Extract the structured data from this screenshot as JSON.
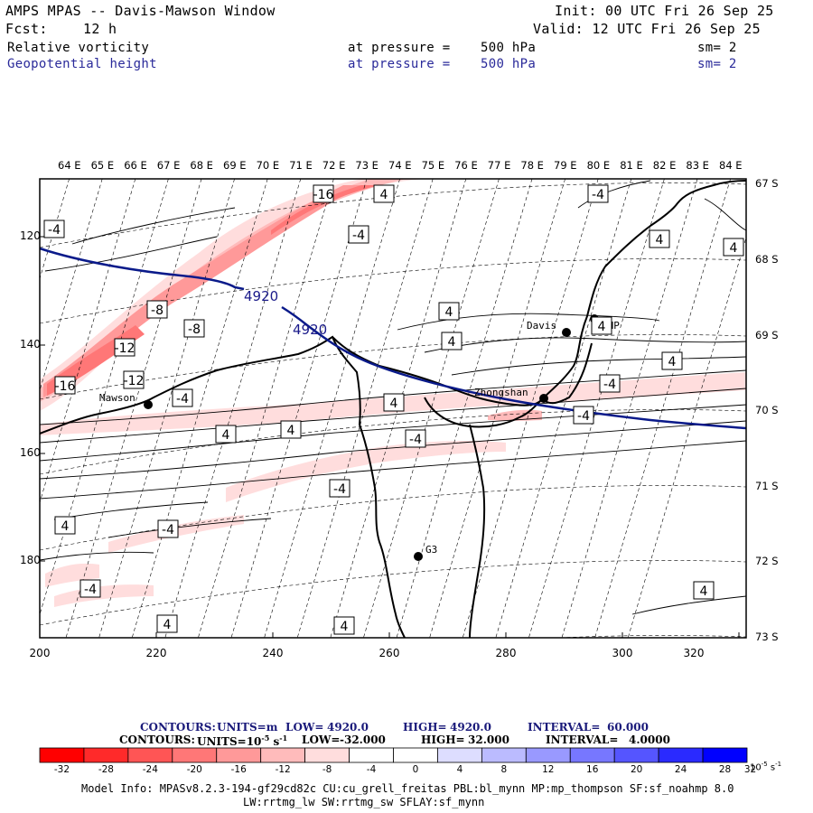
{
  "header": {
    "title": "AMPS MPAS -- Davis-Mawson Window",
    "init": "Init: 00 UTC Fri 26 Sep 25",
    "fcst_label": "Fcst:",
    "fcst_value": "12 h",
    "valid": "Valid: 12 UTC Fri 26 Sep 25",
    "fields": [
      {
        "name": "Relative vorticity",
        "level_label": "at pressure =",
        "level_value": "500 hPa",
        "smooth": "sm= 2",
        "color": "#000000"
      },
      {
        "name": "Geopotential height",
        "level_label": "at pressure =",
        "level_value": "500 hPa",
        "smooth": "sm= 2",
        "color": "#2a2a9a"
      }
    ]
  },
  "map": {
    "top_lon_labels": [
      "64 E",
      "65 E",
      "66 E",
      "67 E",
      "68 E",
      "69 E",
      "70 E",
      "71 E",
      "72 E",
      "73 E",
      "74 E",
      "75 E",
      "76 E",
      "77 E",
      "78 E",
      "79 E",
      "80 E",
      "81 E",
      "82 E",
      "83 E",
      "84 E"
    ],
    "x_ticks": [
      "200",
      "220",
      "240",
      "260",
      "280",
      "300",
      "320"
    ],
    "y_ticks": [
      "120",
      "140",
      "160",
      "180"
    ],
    "right_lat_labels": [
      "67 S",
      "68 S",
      "69 S",
      "70 S",
      "71 S",
      "72 S",
      "73 S"
    ],
    "stations": [
      {
        "name": "Mawson"
      },
      {
        "name": "Davis"
      },
      {
        "name": "Zhongshan"
      },
      {
        "name": "AHP"
      },
      {
        "name": "G3"
      }
    ],
    "height_labels": [
      "4920",
      "4920"
    ],
    "vort_labels": [
      "-4",
      "-16",
      "4",
      "-4",
      "4",
      "-8",
      "-8",
      "-12",
      "-16",
      "-12",
      "-4",
      "4",
      "4",
      "4",
      "4",
      "4",
      "-4",
      "-4",
      "-4",
      "4",
      "4",
      "-4",
      "-4",
      "4",
      "4",
      "4",
      "-4",
      "4",
      "-4",
      "4"
    ],
    "colors": {
      "height_line": "#0a1a8a",
      "coast": "#000000"
    }
  },
  "legend": {
    "line1": {
      "label": "CONTOURS:",
      "units": "UNITS=m",
      "low": "LOW=",
      "low_value": "4920.0",
      "high": "HIGH=",
      "high_value": "4920.0",
      "interval": "INTERVAL=",
      "interval_value": "60.000",
      "color": "#1a1a7a"
    },
    "line2": {
      "label": "CONTOURS:",
      "units": "UNITS=10",
      "units_exp": "-5",
      "units_unit": "s",
      "units_unit_exp": "-1",
      "low": "LOW=",
      "low_value": "-32.000",
      "high": "HIGH=",
      "high_value": "32.000",
      "interval": "INTERVAL=",
      "interval_value": "4.0000"
    },
    "colorbar": {
      "colors": [
        "#ff0000",
        "#ff2a2a",
        "#ff5555",
        "#ff7777",
        "#ff9999",
        "#ffbbbb",
        "#ffdddd",
        "#ffffff",
        "#ffffff",
        "#ddddff",
        "#bbbbff",
        "#9999ff",
        "#7777ff",
        "#5555ff",
        "#2a2aff",
        "#0000ff"
      ],
      "labels": [
        "-32",
        "-28",
        "-24",
        "-20",
        "-16",
        "-12",
        "-8",
        "-4",
        "0",
        "4",
        "8",
        "12",
        "16",
        "20",
        "24",
        "28",
        "32"
      ],
      "units": "10",
      "units_exp": "-5",
      "units_unit": "s",
      "units_unit_exp": "-1"
    }
  },
  "info": {
    "line1": "Model Info: MPASv8.2.3-194-gf29cd82c CU:cu_grell_freitas PBL:bl_mynn MP:mp_thompson SF:sf_noahmp 8.0",
    "line2": "LW:rrtmg_lw SW:rrtmg_sw SFLAY:sf_mynn"
  }
}
